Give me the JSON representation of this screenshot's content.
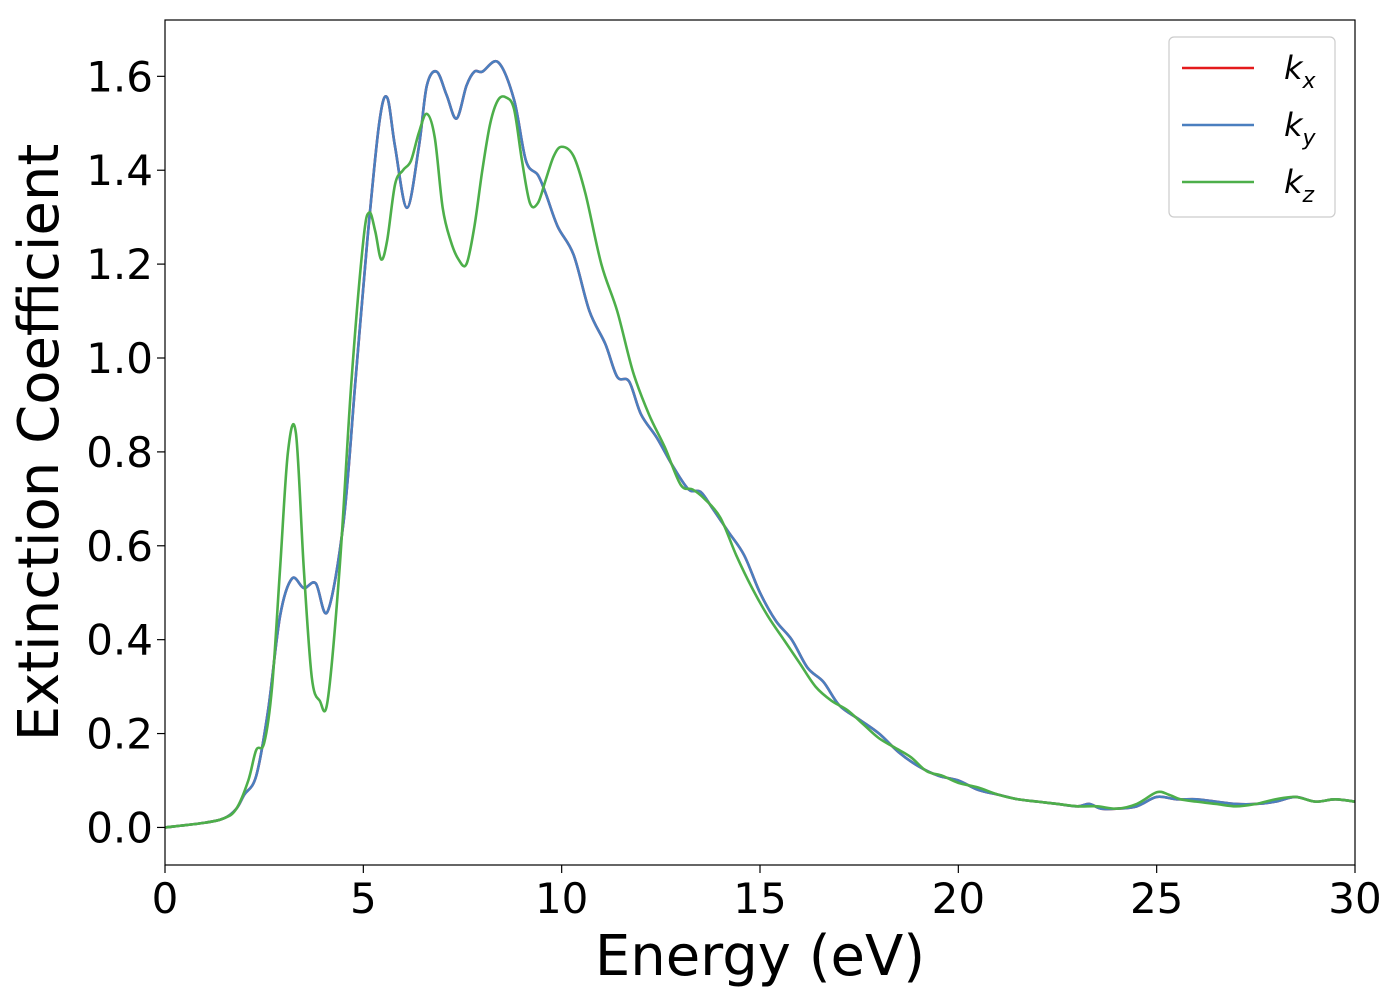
{
  "chart_data": {
    "type": "line",
    "title": "",
    "xlabel": "Energy (eV)",
    "ylabel": "Extinction Coefficient",
    "xlim": [
      0,
      30
    ],
    "ylim": [
      -0.08,
      1.72
    ],
    "xticks": [
      0,
      5,
      10,
      15,
      20,
      25,
      30
    ],
    "xtick_labels": [
      "0",
      "5",
      "10",
      "15",
      "20",
      "25",
      "30"
    ],
    "yticks": [
      0.0,
      0.2,
      0.4,
      0.6,
      0.8,
      1.0,
      1.2,
      1.4,
      1.6
    ],
    "ytick_labels": [
      "0.0",
      "0.2",
      "0.4",
      "0.6",
      "0.8",
      "1.0",
      "1.2",
      "1.4",
      "1.6"
    ],
    "grid": false,
    "legend_position": "top-right",
    "series": [
      {
        "name": "k_x",
        "label_main": "k",
        "label_sub": "x",
        "color": "#e41a1c",
        "x": [
          0,
          1,
          1.5,
          1.8,
          2.0,
          2.3,
          2.6,
          2.9,
          3.2,
          3.5,
          3.8,
          4.1,
          4.5,
          4.8,
          5.1,
          5.4,
          5.6,
          5.8,
          6.1,
          6.4,
          6.6,
          6.85,
          7.1,
          7.35,
          7.6,
          7.8,
          8.0,
          8.4,
          8.8,
          9.1,
          9.4,
          9.6,
          9.9,
          10.3,
          10.7,
          11.1,
          11.4,
          11.7,
          12.0,
          12.4,
          12.8,
          13.2,
          13.5,
          13.8,
          14.2,
          14.6,
          15.0,
          15.4,
          15.8,
          16.2,
          16.6,
          17.0,
          17.5,
          18.0,
          18.5,
          19.0,
          19.5,
          20.0,
          20.5,
          21.0,
          21.5,
          22.0,
          22.5,
          23.0,
          23.3,
          23.6,
          24.0,
          24.5,
          25.0,
          25.5,
          26.0,
          26.5,
          27.0,
          27.5,
          28.0,
          28.5,
          29.0,
          29.5,
          30.0
        ],
        "y": [
          0.0,
          0.01,
          0.02,
          0.04,
          0.07,
          0.11,
          0.25,
          0.45,
          0.53,
          0.51,
          0.52,
          0.46,
          0.65,
          0.95,
          1.25,
          1.5,
          1.555,
          1.45,
          1.32,
          1.45,
          1.58,
          1.61,
          1.56,
          1.51,
          1.58,
          1.61,
          1.61,
          1.63,
          1.55,
          1.42,
          1.39,
          1.35,
          1.28,
          1.22,
          1.1,
          1.03,
          0.96,
          0.95,
          0.88,
          0.83,
          0.77,
          0.72,
          0.715,
          0.68,
          0.63,
          0.58,
          0.5,
          0.44,
          0.4,
          0.34,
          0.31,
          0.26,
          0.23,
          0.2,
          0.16,
          0.13,
          0.11,
          0.1,
          0.08,
          0.07,
          0.06,
          0.055,
          0.05,
          0.045,
          0.05,
          0.04,
          0.04,
          0.045,
          0.065,
          0.06,
          0.06,
          0.055,
          0.05,
          0.05,
          0.055,
          0.065,
          0.055,
          0.06,
          0.055
        ]
      },
      {
        "name": "k_y",
        "label_main": "k",
        "label_sub": "y",
        "color": "#4a7fbf",
        "x": [
          0,
          1,
          1.5,
          1.8,
          2.0,
          2.3,
          2.6,
          2.9,
          3.2,
          3.5,
          3.8,
          4.1,
          4.5,
          4.8,
          5.1,
          5.4,
          5.6,
          5.8,
          6.1,
          6.4,
          6.6,
          6.85,
          7.1,
          7.35,
          7.6,
          7.8,
          8.0,
          8.4,
          8.8,
          9.1,
          9.4,
          9.6,
          9.9,
          10.3,
          10.7,
          11.1,
          11.4,
          11.7,
          12.0,
          12.4,
          12.8,
          13.2,
          13.5,
          13.8,
          14.2,
          14.6,
          15.0,
          15.4,
          15.8,
          16.2,
          16.6,
          17.0,
          17.5,
          18.0,
          18.5,
          19.0,
          19.5,
          20.0,
          20.5,
          21.0,
          21.5,
          22.0,
          22.5,
          23.0,
          23.3,
          23.6,
          24.0,
          24.5,
          25.0,
          25.5,
          26.0,
          26.5,
          27.0,
          27.5,
          28.0,
          28.5,
          29.0,
          29.5,
          30.0
        ],
        "y": [
          0.0,
          0.01,
          0.02,
          0.04,
          0.07,
          0.11,
          0.25,
          0.45,
          0.53,
          0.51,
          0.52,
          0.46,
          0.65,
          0.95,
          1.25,
          1.5,
          1.555,
          1.45,
          1.32,
          1.45,
          1.58,
          1.61,
          1.56,
          1.51,
          1.58,
          1.61,
          1.61,
          1.63,
          1.55,
          1.42,
          1.39,
          1.35,
          1.28,
          1.22,
          1.1,
          1.03,
          0.96,
          0.95,
          0.88,
          0.83,
          0.77,
          0.72,
          0.715,
          0.68,
          0.63,
          0.58,
          0.5,
          0.44,
          0.4,
          0.34,
          0.31,
          0.26,
          0.23,
          0.2,
          0.16,
          0.13,
          0.11,
          0.1,
          0.08,
          0.07,
          0.06,
          0.055,
          0.05,
          0.045,
          0.05,
          0.04,
          0.04,
          0.045,
          0.065,
          0.06,
          0.06,
          0.055,
          0.05,
          0.05,
          0.055,
          0.065,
          0.055,
          0.06,
          0.055
        ]
      },
      {
        "name": "k_z",
        "label_main": "k",
        "label_sub": "z",
        "color": "#4daf4a",
        "x": [
          0,
          1,
          1.5,
          1.8,
          2.1,
          2.3,
          2.5,
          2.7,
          2.9,
          3.1,
          3.3,
          3.5,
          3.7,
          3.9,
          4.1,
          4.4,
          4.7,
          5.0,
          5.15,
          5.3,
          5.45,
          5.6,
          5.8,
          6.0,
          6.2,
          6.4,
          6.6,
          6.8,
          7.0,
          7.2,
          7.4,
          7.6,
          7.8,
          8.0,
          8.2,
          8.4,
          8.6,
          8.8,
          9.0,
          9.2,
          9.4,
          9.6,
          9.8,
          10.0,
          10.3,
          10.6,
          11.0,
          11.4,
          11.8,
          12.2,
          12.6,
          13.0,
          13.3,
          13.6,
          14.0,
          14.4,
          14.8,
          15.2,
          15.6,
          16.0,
          16.4,
          16.8,
          17.2,
          17.6,
          18.0,
          18.4,
          18.8,
          19.2,
          19.6,
          20.0,
          20.5,
          21.0,
          21.5,
          22.0,
          22.5,
          23.0,
          23.5,
          24.0,
          24.5,
          25.0,
          25.3,
          25.6,
          26.0,
          26.5,
          27.0,
          27.5,
          28.0,
          28.5,
          29.0,
          29.5,
          30.0
        ],
        "y": [
          0.0,
          0.01,
          0.02,
          0.04,
          0.1,
          0.165,
          0.18,
          0.3,
          0.55,
          0.8,
          0.84,
          0.55,
          0.32,
          0.27,
          0.27,
          0.55,
          0.95,
          1.25,
          1.31,
          1.27,
          1.21,
          1.25,
          1.37,
          1.4,
          1.42,
          1.48,
          1.52,
          1.47,
          1.32,
          1.25,
          1.21,
          1.2,
          1.28,
          1.4,
          1.5,
          1.55,
          1.555,
          1.53,
          1.42,
          1.33,
          1.33,
          1.38,
          1.43,
          1.45,
          1.43,
          1.35,
          1.2,
          1.1,
          0.97,
          0.88,
          0.81,
          0.73,
          0.72,
          0.7,
          0.66,
          0.58,
          0.51,
          0.45,
          0.4,
          0.35,
          0.3,
          0.27,
          0.25,
          0.22,
          0.19,
          0.17,
          0.15,
          0.12,
          0.11,
          0.095,
          0.085,
          0.07,
          0.06,
          0.055,
          0.05,
          0.045,
          0.045,
          0.04,
          0.05,
          0.075,
          0.07,
          0.06,
          0.055,
          0.05,
          0.045,
          0.05,
          0.06,
          0.065,
          0.055,
          0.06,
          0.055
        ]
      }
    ]
  }
}
